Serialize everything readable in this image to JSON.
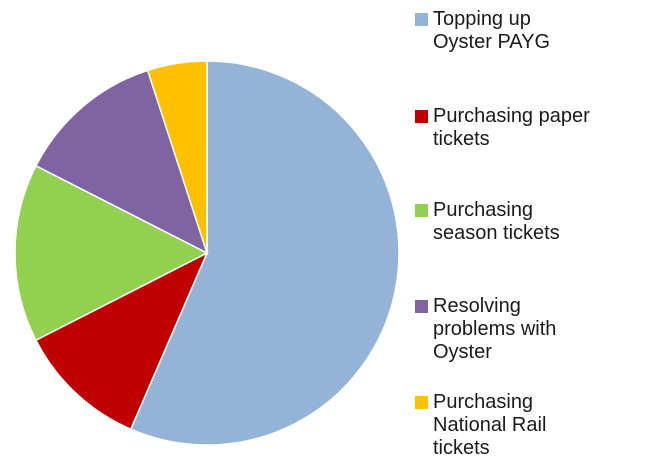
{
  "chart_data": {
    "type": "pie",
    "title": "",
    "slices": [
      {
        "label": "Topping up\nOyster PAYG",
        "value": 56.5,
        "color": "#95b3d7"
      },
      {
        "label": "Purchasing paper\ntickets",
        "value": 11.0,
        "color": "#c00000"
      },
      {
        "label": "Purchasing\nseason tickets",
        "value": 15.0,
        "color": "#92d050"
      },
      {
        "label": "Resolving\nproblems with\nOyster",
        "value": 12.5,
        "color": "#8064a2"
      },
      {
        "label": "Purchasing\nNational Rail\ntickets",
        "value": 5.0,
        "color": "#ffc000"
      }
    ],
    "start_angle_deg": 0,
    "direction": "clockwise",
    "legend_position": "right"
  }
}
